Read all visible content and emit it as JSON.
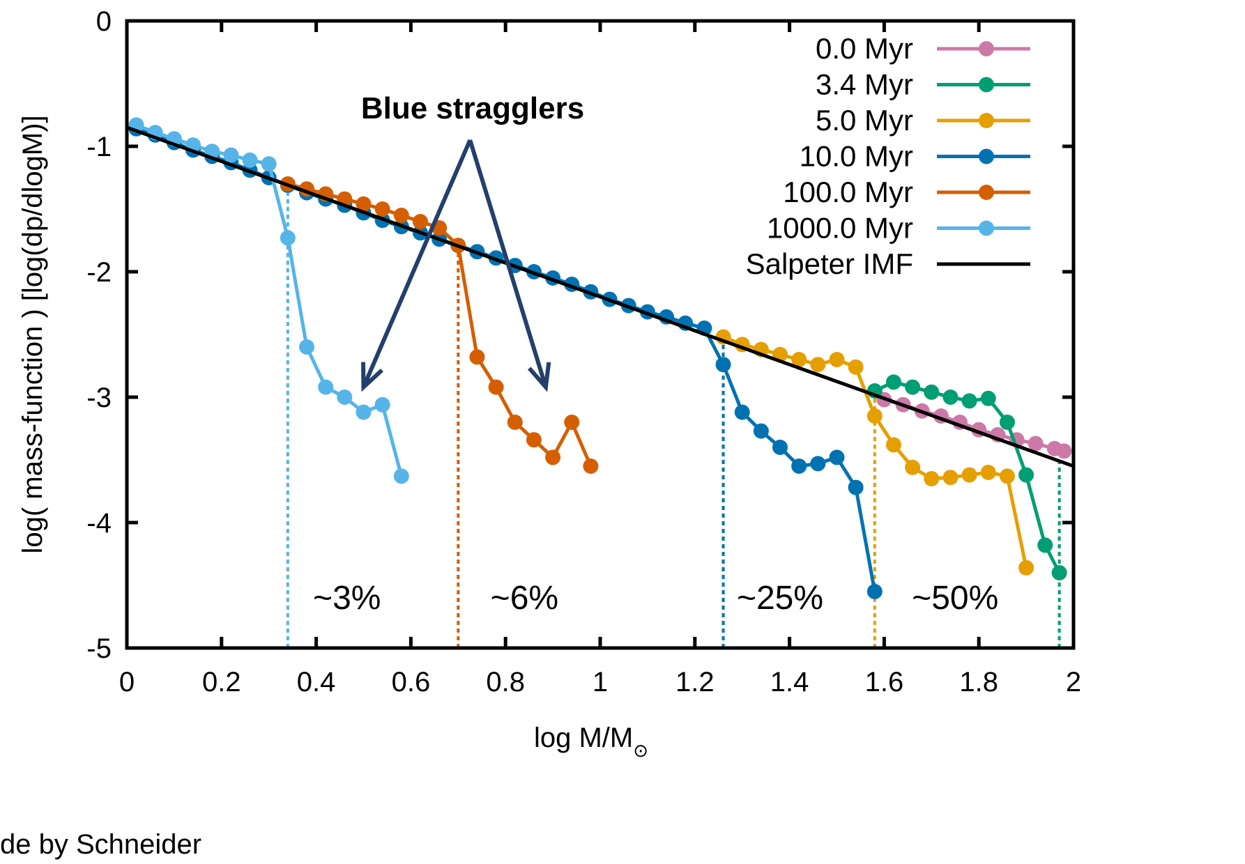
{
  "credit": "de by Schneider",
  "chart_data": {
    "type": "line",
    "title": "",
    "xlabel": "log M/M",
    "xlabel_sub": "⊙",
    "ylabel": "log( mass-function ) [log(dp/dlogM)]",
    "xlim": [
      0,
      2
    ],
    "ylim": [
      -5,
      0
    ],
    "xticks": [
      "0",
      "0.2",
      "0.4",
      "0.6",
      "0.8",
      "1",
      "1.2",
      "1.4",
      "1.6",
      "1.8",
      "2"
    ],
    "yticks": [
      "0",
      "-1",
      "-2",
      "-3",
      "-4",
      "-5"
    ],
    "legend_position": "top-right",
    "series": [
      {
        "name": "0.0 Myr",
        "color": "#cc79a7",
        "x": [
          1.6,
          1.64,
          1.68,
          1.72,
          1.76,
          1.8,
          1.84,
          1.88,
          1.92,
          1.96,
          1.98
        ],
        "y": [
          -3.02,
          -3.06,
          -3.11,
          -3.15,
          -3.2,
          -3.26,
          -3.3,
          -3.34,
          -3.37,
          -3.41,
          -3.43
        ]
      },
      {
        "name": "3.4 Myr",
        "color": "#009e73",
        "x": [
          1.58,
          1.62,
          1.66,
          1.7,
          1.74,
          1.78,
          1.82,
          1.86,
          1.9,
          1.94,
          1.97
        ],
        "y": [
          -2.95,
          -2.88,
          -2.92,
          -2.96,
          -3.0,
          -3.03,
          -3.01,
          -3.2,
          -3.62,
          -4.18,
          -4.4
        ]
      },
      {
        "name": "5.0 Myr",
        "color": "#e69f00",
        "x": [
          1.26,
          1.3,
          1.34,
          1.38,
          1.42,
          1.46,
          1.5,
          1.54,
          1.58,
          1.62,
          1.66,
          1.7,
          1.74,
          1.78,
          1.82,
          1.86,
          1.9
        ],
        "y": [
          -2.52,
          -2.58,
          -2.62,
          -2.66,
          -2.7,
          -2.74,
          -2.7,
          -2.76,
          -3.15,
          -3.38,
          -3.56,
          -3.65,
          -3.64,
          -3.62,
          -3.6,
          -3.63,
          -4.36
        ]
      },
      {
        "name": "10.0 Myr",
        "color": "#0072b2",
        "x": [
          0.02,
          0.06,
          0.1,
          0.14,
          0.18,
          0.22,
          0.26,
          0.3,
          0.34,
          0.38,
          0.42,
          0.46,
          0.5,
          0.54,
          0.58,
          0.62,
          0.66,
          0.7,
          0.74,
          0.78,
          0.82,
          0.86,
          0.9,
          0.94,
          0.98,
          1.02,
          1.06,
          1.1,
          1.14,
          1.18,
          1.22,
          1.26,
          1.3,
          1.34,
          1.38,
          1.42,
          1.46,
          1.5,
          1.54,
          1.58
        ],
        "y": [
          -0.86,
          -0.91,
          -0.97,
          -1.03,
          -1.08,
          -1.13,
          -1.19,
          -1.25,
          -1.31,
          -1.37,
          -1.42,
          -1.47,
          -1.53,
          -1.59,
          -1.64,
          -1.69,
          -1.74,
          -1.79,
          -1.84,
          -1.89,
          -1.95,
          -2.0,
          -2.05,
          -2.1,
          -2.16,
          -2.22,
          -2.27,
          -2.32,
          -2.36,
          -2.41,
          -2.45,
          -2.74,
          -3.12,
          -3.27,
          -3.4,
          -3.55,
          -3.53,
          -3.48,
          -3.72,
          -4.55
        ]
      },
      {
        "name": "100.0 Myr",
        "color": "#d55e00",
        "x": [
          0.34,
          0.38,
          0.42,
          0.46,
          0.5,
          0.54,
          0.58,
          0.62,
          0.66,
          0.7,
          0.74,
          0.78,
          0.82,
          0.86,
          0.9,
          0.94,
          0.98
        ],
        "y": [
          -1.3,
          -1.34,
          -1.38,
          -1.42,
          -1.46,
          -1.5,
          -1.55,
          -1.6,
          -1.65,
          -1.79,
          -2.68,
          -2.92,
          -3.2,
          -3.34,
          -3.48,
          -3.2,
          -3.55
        ]
      },
      {
        "name": "1000.0 Myr",
        "color": "#56b4e9",
        "x": [
          0.02,
          0.06,
          0.1,
          0.14,
          0.18,
          0.22,
          0.26,
          0.3,
          0.34,
          0.38,
          0.42,
          0.46,
          0.5,
          0.54,
          0.58
        ],
        "y": [
          -0.83,
          -0.89,
          -0.94,
          -0.99,
          -1.04,
          -1.07,
          -1.11,
          -1.14,
          -1.73,
          -2.6,
          -2.92,
          -3.0,
          -3.12,
          -3.06,
          -3.63
        ]
      },
      {
        "name": "Salpeter IMF",
        "color": "#000000",
        "line_only": true,
        "x": [
          0,
          2
        ],
        "y": [
          -0.85,
          -3.55
        ]
      }
    ],
    "cutoffs": [
      {
        "x": 0.34,
        "color": "#56b4e9"
      },
      {
        "x": 0.7,
        "color": "#d55e00"
      },
      {
        "x": 1.26,
        "color": "#0072b2"
      },
      {
        "x": 1.58,
        "color": "#e69f00"
      },
      {
        "x": 1.97,
        "color": "#009e73"
      }
    ],
    "percent_labels": [
      {
        "text": "~3%",
        "x": 0.465
      },
      {
        "text": "~6%",
        "x": 0.84
      },
      {
        "text": "~25%",
        "x": 1.38
      },
      {
        "text": "~50%",
        "x": 1.75
      }
    ],
    "percent_labels_y": -4.6,
    "annotation": {
      "text": "Blue stragglers",
      "arrow_origin": {
        "x": 0.725,
        "y": -0.95
      },
      "arrow_targets": [
        {
          "x": 0.5,
          "y": -2.92
        },
        {
          "x": 0.885,
          "y": -2.92
        }
      ],
      "color": "#243f6b"
    }
  }
}
